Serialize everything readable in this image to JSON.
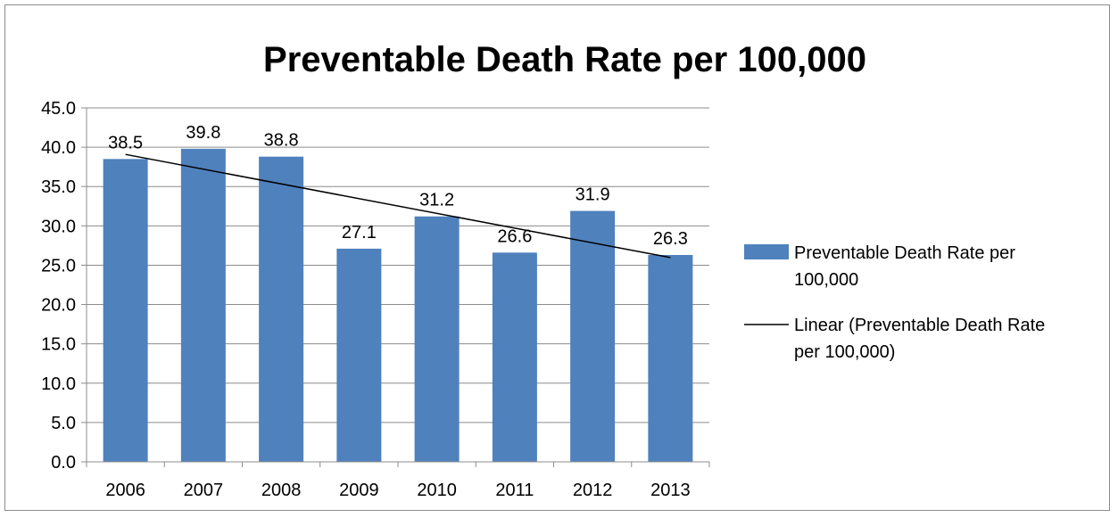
{
  "chart_data": {
    "type": "bar",
    "title": "Preventable Death Rate per 100,000",
    "xlabel": "",
    "ylabel": "",
    "categories": [
      "2006",
      "2007",
      "2008",
      "2009",
      "2010",
      "2011",
      "2012",
      "2013"
    ],
    "series": [
      {
        "name": "Preventable Death Rate per 100,000",
        "values": [
          38.5,
          39.8,
          38.8,
          27.1,
          31.2,
          26.6,
          31.9,
          26.3
        ],
        "data_labels": [
          "38.5",
          "39.8",
          "38.8",
          "27.1",
          "31.2",
          "26.6",
          "31.9",
          "26.3"
        ],
        "color": "#4f81bd"
      }
    ],
    "trendline": {
      "name": "Linear (Preventable Death Rate per 100,000)",
      "type": "linear",
      "color": "#000000"
    },
    "ylim": [
      0,
      45
    ],
    "yticks": [
      "0.0",
      "5.0",
      "10.0",
      "15.0",
      "20.0",
      "25.0",
      "30.0",
      "35.0",
      "40.0",
      "45.0"
    ],
    "grid": true,
    "legend_position": "right",
    "legend": [
      {
        "label_lines": [
          "Preventable Death Rate per",
          "100,000"
        ],
        "kind": "bar"
      },
      {
        "label_lines": [
          "Linear (Preventable Death Rate",
          "per 100,000)"
        ],
        "kind": "line"
      }
    ]
  }
}
